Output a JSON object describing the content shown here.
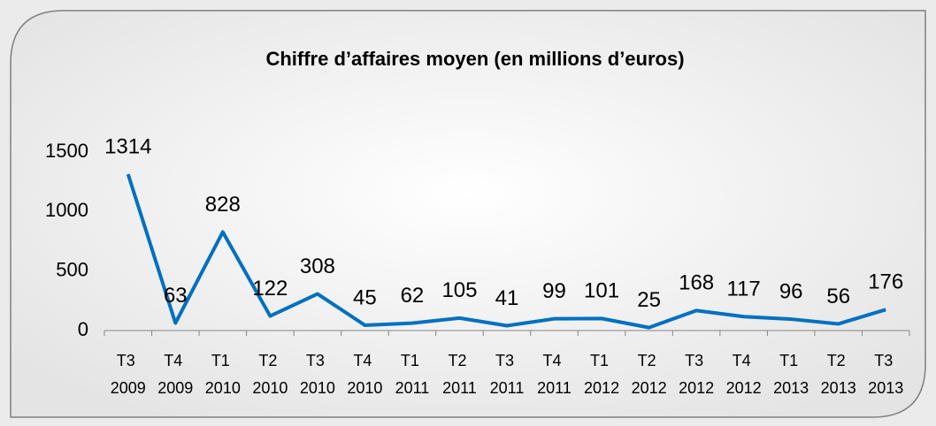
{
  "chart_data": {
    "type": "line",
    "title": "Chiffre d’affaires moyen (en millions d’euros)",
    "categories": [
      "T3 2009",
      "T4 2009",
      "T1 2010",
      "T2 2010",
      "T3 2010",
      "T4 2010",
      "T1 2011",
      "T2 2011",
      "T3 2011",
      "T4 2011",
      "T1 2012",
      "T2 2012",
      "T3 2012",
      "T4 2012",
      "T1 2013",
      "T2 2013",
      "T3 2013"
    ],
    "values": [
      1314,
      63,
      828,
      122,
      308,
      45,
      62,
      105,
      41,
      99,
      101,
      25,
      168,
      117,
      96,
      56,
      176
    ],
    "color": "#0070c0",
    "ylim": [
      0,
      1500
    ],
    "yticks": [
      0,
      500,
      1000,
      1500
    ],
    "grid": false
  }
}
